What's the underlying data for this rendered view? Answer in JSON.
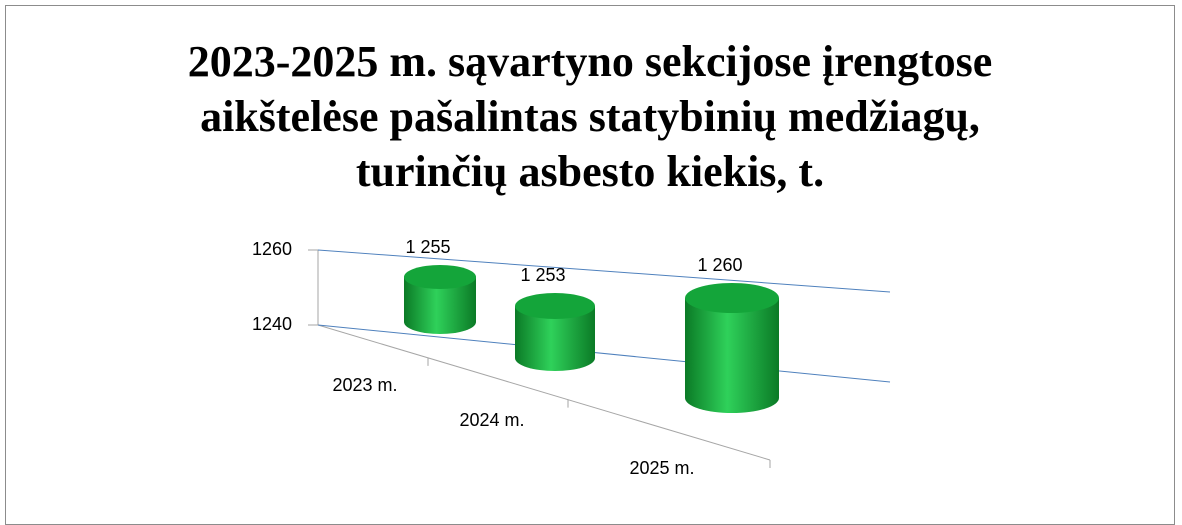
{
  "chart_data": {
    "type": "cylinder3d",
    "title": "2023-2025 m. sąvartyno sekcijose įrengtose aikštelėse pašalintas statybinių medžiagų, turinčių asbesto kiekis, t.",
    "categories": [
      "2023 m.",
      "2024 m.",
      "2025 m."
    ],
    "values": [
      1255,
      1253,
      1260
    ],
    "value_labels": [
      "1 255",
      "1 253",
      "1 260"
    ],
    "color": "#1aa33f",
    "ylim": [
      1240,
      1260
    ],
    "yticks": [
      1240,
      1260
    ],
    "grid": true
  }
}
